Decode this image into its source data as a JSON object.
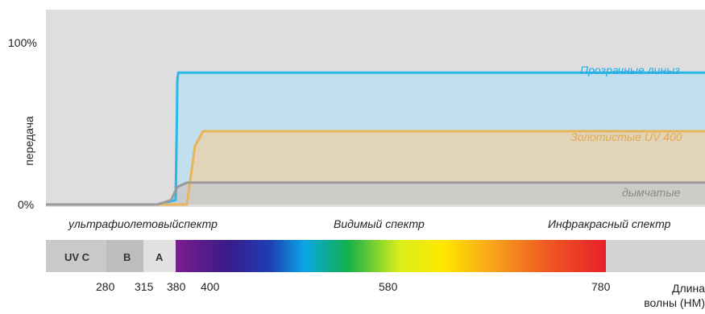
{
  "chart_data": {
    "type": "line",
    "ylabel": "передача",
    "y_ticks": [
      "100%",
      "0%"
    ],
    "xlabel": "Длина волны (НМ)",
    "x_ticks": [
      "280",
      "315",
      "380",
      "400",
      "580",
      "780"
    ],
    "x_domain": [
      220,
      880
    ],
    "y_domain": [
      0,
      100
    ],
    "regions": [
      {
        "label": "ультрафиолетовыйспектр"
      },
      {
        "label": "Видимый спектр"
      },
      {
        "label": "Инфракрасный спектр"
      }
    ],
    "uv_bands": [
      {
        "label": "UV C",
        "from": 220,
        "to": 280,
        "color": "#c9c9c9"
      },
      {
        "label": "B",
        "from": 280,
        "to": 315,
        "color": "#bdbdbd"
      },
      {
        "label": "A",
        "from": 315,
        "to": 350,
        "color": "#e2e2e2"
      }
    ],
    "visible_band": {
      "from": 350,
      "to": 780
    },
    "series": [
      {
        "name": "Прозрачные линыз",
        "color": "#29b6e8",
        "fill": "#bcdff0",
        "points": [
          [
            220,
            0
          ],
          [
            330,
            0
          ],
          [
            350,
            3
          ],
          [
            360,
            50
          ],
          [
            366,
            85
          ],
          [
            375,
            90
          ],
          [
            880,
            90
          ]
        ]
      },
      {
        "name": "Золотистые UV 400",
        "color": "#e8b45a",
        "fill": "#e7d2ae",
        "points": [
          [
            220,
            0
          ],
          [
            330,
            0
          ],
          [
            370,
            0
          ],
          [
            385,
            0
          ],
          [
            390,
            40
          ],
          [
            395,
            50
          ],
          [
            880,
            50
          ]
        ]
      },
      {
        "name": "дымчатые",
        "color": "#9a9a9a",
        "fill": "#c9c9c9",
        "points": [
          [
            220,
            0
          ],
          [
            330,
            0
          ],
          [
            345,
            3
          ],
          [
            365,
            12
          ],
          [
            385,
            15
          ],
          [
            880,
            15
          ]
        ]
      }
    ],
    "grid": false,
    "legend": "inline"
  }
}
